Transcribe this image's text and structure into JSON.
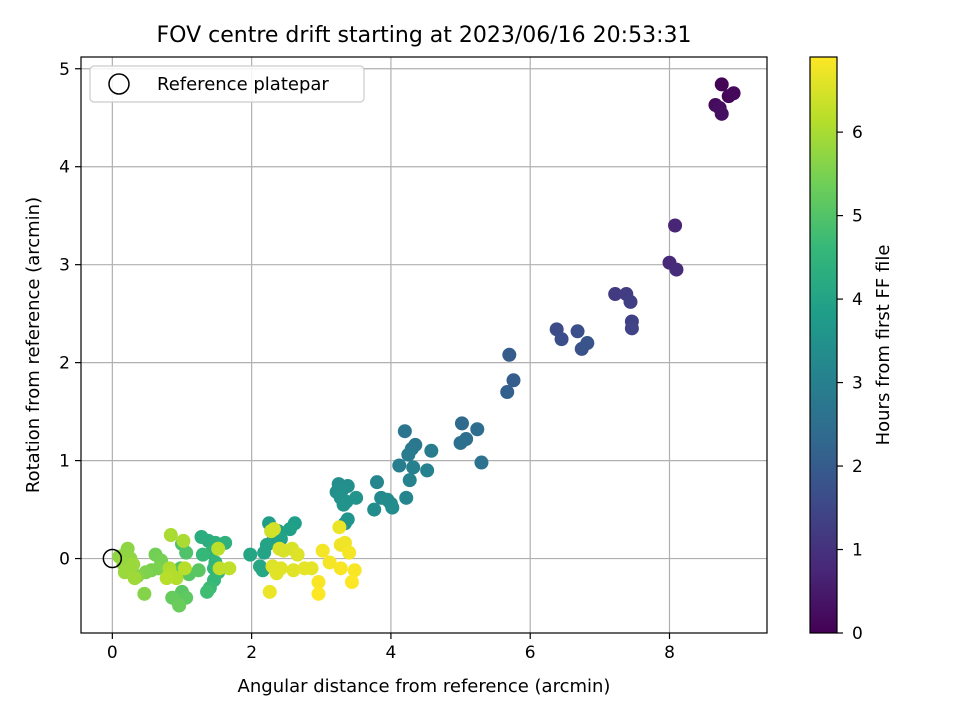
{
  "chart_data": {
    "type": "scatter",
    "title": "FOV centre drift starting at 2023/06/16 20:53:31",
    "xlabel": "Angular distance from reference (arcmin)",
    "ylabel": "Rotation from reference (arcmin)",
    "xlim": [
      -0.45,
      9.4
    ],
    "ylim": [
      -0.76,
      5.12
    ],
    "x_ticks": [
      0,
      2,
      4,
      6,
      8
    ],
    "y_ticks": [
      0,
      1,
      2,
      3,
      4,
      5
    ],
    "grid": true,
    "legend": {
      "placement": "top-left",
      "entries": [
        "Reference platepar"
      ]
    },
    "reference_point": {
      "x": 0,
      "y": 0,
      "marker": "open-circle",
      "color": "#000000"
    },
    "colorbar": {
      "label": "Hours from first FF file",
      "range": [
        0,
        6.9
      ],
      "ticks": [
        0,
        1,
        2,
        3,
        4,
        5,
        6
      ],
      "colormap": "viridis",
      "colors": [
        "#440154",
        "#482878",
        "#3e4989",
        "#31688e",
        "#26828e",
        "#1f9e89",
        "#35b779",
        "#6ece58",
        "#b5de2b",
        "#fde725"
      ]
    },
    "points": [
      {
        "x": 8.75,
        "y": 4.84,
        "h": 0.05
      },
      {
        "x": 8.85,
        "y": 4.72,
        "h": 0.1
      },
      {
        "x": 8.92,
        "y": 4.75,
        "h": 0.15
      },
      {
        "x": 8.66,
        "y": 4.63,
        "h": 0.2
      },
      {
        "x": 8.72,
        "y": 4.6,
        "h": 0.25
      },
      {
        "x": 8.75,
        "y": 4.54,
        "h": 0.3
      },
      {
        "x": 8.08,
        "y": 3.4,
        "h": 0.7
      },
      {
        "x": 8.0,
        "y": 3.02,
        "h": 0.8
      },
      {
        "x": 8.1,
        "y": 2.95,
        "h": 0.85
      },
      {
        "x": 7.22,
        "y": 2.7,
        "h": 1.2
      },
      {
        "x": 7.38,
        "y": 2.7,
        "h": 1.25
      },
      {
        "x": 7.44,
        "y": 2.62,
        "h": 1.3
      },
      {
        "x": 7.46,
        "y": 2.42,
        "h": 1.35
      },
      {
        "x": 7.46,
        "y": 2.35,
        "h": 1.4
      },
      {
        "x": 6.38,
        "y": 2.34,
        "h": 1.6
      },
      {
        "x": 6.45,
        "y": 2.24,
        "h": 1.65
      },
      {
        "x": 6.68,
        "y": 2.32,
        "h": 1.7
      },
      {
        "x": 6.74,
        "y": 2.14,
        "h": 1.75
      },
      {
        "x": 6.82,
        "y": 2.2,
        "h": 1.8
      },
      {
        "x": 5.7,
        "y": 2.08,
        "h": 2.0
      },
      {
        "x": 5.76,
        "y": 1.82,
        "h": 2.05
      },
      {
        "x": 5.67,
        "y": 1.7,
        "h": 2.1
      },
      {
        "x": 5.02,
        "y": 1.38,
        "h": 2.4
      },
      {
        "x": 5.24,
        "y": 1.32,
        "h": 2.45
      },
      {
        "x": 5.08,
        "y": 1.22,
        "h": 2.5
      },
      {
        "x": 5.0,
        "y": 1.18,
        "h": 2.55
      },
      {
        "x": 5.3,
        "y": 0.98,
        "h": 2.6
      },
      {
        "x": 4.2,
        "y": 1.3,
        "h": 2.7
      },
      {
        "x": 4.35,
        "y": 1.16,
        "h": 2.75
      },
      {
        "x": 4.3,
        "y": 1.12,
        "h": 2.8
      },
      {
        "x": 4.25,
        "y": 1.06,
        "h": 2.85
      },
      {
        "x": 4.58,
        "y": 1.1,
        "h": 2.9
      },
      {
        "x": 4.12,
        "y": 0.95,
        "h": 2.95
      },
      {
        "x": 4.32,
        "y": 0.93,
        "h": 3.0
      },
      {
        "x": 4.52,
        "y": 0.9,
        "h": 3.05
      },
      {
        "x": 4.27,
        "y": 0.8,
        "h": 3.1
      },
      {
        "x": 4.22,
        "y": 0.62,
        "h": 3.15
      },
      {
        "x": 3.8,
        "y": 0.78,
        "h": 3.2
      },
      {
        "x": 3.86,
        "y": 0.62,
        "h": 3.25
      },
      {
        "x": 3.95,
        "y": 0.6,
        "h": 3.3
      },
      {
        "x": 4.0,
        "y": 0.56,
        "h": 3.3
      },
      {
        "x": 3.76,
        "y": 0.5,
        "h": 3.35
      },
      {
        "x": 4.02,
        "y": 0.52,
        "h": 3.35
      },
      {
        "x": 3.25,
        "y": 0.76,
        "h": 3.4
      },
      {
        "x": 3.38,
        "y": 0.74,
        "h": 3.4
      },
      {
        "x": 3.22,
        "y": 0.68,
        "h": 3.45
      },
      {
        "x": 3.3,
        "y": 0.7,
        "h": 3.45
      },
      {
        "x": 3.28,
        "y": 0.62,
        "h": 3.5
      },
      {
        "x": 3.36,
        "y": 0.58,
        "h": 3.5
      },
      {
        "x": 3.5,
        "y": 0.62,
        "h": 3.55
      },
      {
        "x": 3.32,
        "y": 0.55,
        "h": 3.55
      },
      {
        "x": 3.38,
        "y": 0.4,
        "h": 3.6
      },
      {
        "x": 3.34,
        "y": 0.36,
        "h": 3.6
      },
      {
        "x": 2.25,
        "y": 0.36,
        "h": 3.8
      },
      {
        "x": 2.38,
        "y": 0.28,
        "h": 3.85
      },
      {
        "x": 2.32,
        "y": 0.22,
        "h": 3.9
      },
      {
        "x": 2.62,
        "y": 0.36,
        "h": 3.85
      },
      {
        "x": 2.55,
        "y": 0.3,
        "h": 3.9
      },
      {
        "x": 2.42,
        "y": 0.2,
        "h": 3.95
      },
      {
        "x": 2.22,
        "y": 0.14,
        "h": 4.0
      },
      {
        "x": 2.18,
        "y": 0.06,
        "h": 4.0
      },
      {
        "x": 1.98,
        "y": 0.04,
        "h": 4.05
      },
      {
        "x": 2.12,
        "y": -0.08,
        "h": 4.1
      },
      {
        "x": 2.16,
        "y": -0.12,
        "h": 4.1
      },
      {
        "x": 1.28,
        "y": 0.22,
        "h": 4.3
      },
      {
        "x": 1.38,
        "y": 0.18,
        "h": 4.3
      },
      {
        "x": 1.48,
        "y": 0.16,
        "h": 4.35
      },
      {
        "x": 1.52,
        "y": 0.12,
        "h": 4.4
      },
      {
        "x": 1.62,
        "y": 0.16,
        "h": 4.4
      },
      {
        "x": 1.42,
        "y": 0.06,
        "h": 4.45
      },
      {
        "x": 1.48,
        "y": -0.04,
        "h": 4.5
      },
      {
        "x": 1.46,
        "y": -0.1,
        "h": 4.5
      },
      {
        "x": 1.52,
        "y": -0.14,
        "h": 4.55
      },
      {
        "x": 1.3,
        "y": 0.04,
        "h": 4.6
      },
      {
        "x": 1.46,
        "y": -0.22,
        "h": 4.6
      },
      {
        "x": 1.4,
        "y": -0.3,
        "h": 4.7
      },
      {
        "x": 1.36,
        "y": -0.34,
        "h": 4.75
      },
      {
        "x": 1.0,
        "y": 0.15,
        "h": 4.9
      },
      {
        "x": 1.06,
        "y": 0.06,
        "h": 4.95
      },
      {
        "x": 0.98,
        "y": -0.1,
        "h": 5.0
      },
      {
        "x": 1.1,
        "y": -0.16,
        "h": 5.05
      },
      {
        "x": 1.24,
        "y": -0.12,
        "h": 5.1
      },
      {
        "x": 1.0,
        "y": -0.34,
        "h": 5.1
      },
      {
        "x": 1.06,
        "y": -0.4,
        "h": 5.15
      },
      {
        "x": 0.94,
        "y": -0.44,
        "h": 5.2
      },
      {
        "x": 0.86,
        "y": -0.4,
        "h": 5.25
      },
      {
        "x": 0.96,
        "y": -0.48,
        "h": 5.3
      },
      {
        "x": 0.62,
        "y": 0.04,
        "h": 5.4
      },
      {
        "x": 0.7,
        "y": -0.02,
        "h": 5.45
      },
      {
        "x": 0.66,
        "y": -0.1,
        "h": 5.5
      },
      {
        "x": 0.56,
        "y": -0.12,
        "h": 5.5
      },
      {
        "x": 0.48,
        "y": -0.14,
        "h": 5.55
      },
      {
        "x": 0.46,
        "y": -0.36,
        "h": 5.6
      },
      {
        "x": 0.36,
        "y": -0.18,
        "h": 5.6
      },
      {
        "x": 0.22,
        "y": 0.1,
        "h": 5.7
      },
      {
        "x": 0.18,
        "y": 0.04,
        "h": 5.7
      },
      {
        "x": 0.26,
        "y": 0.0,
        "h": 5.75
      },
      {
        "x": 0.1,
        "y": 0.02,
        "h": 5.75
      },
      {
        "x": 0.16,
        "y": -0.06,
        "h": 5.8
      },
      {
        "x": 0.22,
        "y": -0.1,
        "h": 5.8
      },
      {
        "x": 0.18,
        "y": -0.14,
        "h": 5.85
      },
      {
        "x": 0.3,
        "y": -0.06,
        "h": 5.85
      },
      {
        "x": 0.32,
        "y": -0.2,
        "h": 5.9
      },
      {
        "x": 0.84,
        "y": 0.24,
        "h": 6.0
      },
      {
        "x": 1.02,
        "y": 0.18,
        "h": 6.0
      },
      {
        "x": 0.82,
        "y": -0.1,
        "h": 6.05
      },
      {
        "x": 0.84,
        "y": -0.16,
        "h": 6.1
      },
      {
        "x": 0.92,
        "y": -0.2,
        "h": 6.1
      },
      {
        "x": 0.78,
        "y": -0.2,
        "h": 6.15
      },
      {
        "x": 1.04,
        "y": -0.1,
        "h": 6.15
      },
      {
        "x": 1.52,
        "y": 0.1,
        "h": 6.2
      },
      {
        "x": 1.54,
        "y": -0.1,
        "h": 6.25
      },
      {
        "x": 1.68,
        "y": -0.1,
        "h": 6.25
      },
      {
        "x": 2.28,
        "y": 0.28,
        "h": 6.4
      },
      {
        "x": 2.32,
        "y": 0.3,
        "h": 6.45
      },
      {
        "x": 2.4,
        "y": 0.1,
        "h": 6.5
      },
      {
        "x": 2.46,
        "y": 0.08,
        "h": 6.5
      },
      {
        "x": 2.58,
        "y": 0.1,
        "h": 6.5
      },
      {
        "x": 2.66,
        "y": 0.04,
        "h": 6.55
      },
      {
        "x": 2.3,
        "y": -0.08,
        "h": 6.55
      },
      {
        "x": 2.42,
        "y": -0.1,
        "h": 6.6
      },
      {
        "x": 2.36,
        "y": -0.15,
        "h": 6.6
      },
      {
        "x": 2.6,
        "y": -0.12,
        "h": 6.6
      },
      {
        "x": 2.76,
        "y": -0.1,
        "h": 6.65
      },
      {
        "x": 2.86,
        "y": -0.1,
        "h": 6.65
      },
      {
        "x": 2.26,
        "y": -0.34,
        "h": 6.7
      },
      {
        "x": 3.26,
        "y": 0.32,
        "h": 6.7
      },
      {
        "x": 3.28,
        "y": 0.14,
        "h": 6.75
      },
      {
        "x": 3.34,
        "y": 0.16,
        "h": 6.75
      },
      {
        "x": 3.4,
        "y": 0.06,
        "h": 6.8
      },
      {
        "x": 3.02,
        "y": 0.08,
        "h": 6.8
      },
      {
        "x": 3.12,
        "y": -0.04,
        "h": 6.8
      },
      {
        "x": 3.28,
        "y": -0.1,
        "h": 6.85
      },
      {
        "x": 3.48,
        "y": -0.12,
        "h": 6.85
      },
      {
        "x": 2.96,
        "y": -0.24,
        "h": 6.85
      },
      {
        "x": 3.44,
        "y": -0.24,
        "h": 6.9
      },
      {
        "x": 2.96,
        "y": -0.36,
        "h": 6.9
      }
    ]
  }
}
